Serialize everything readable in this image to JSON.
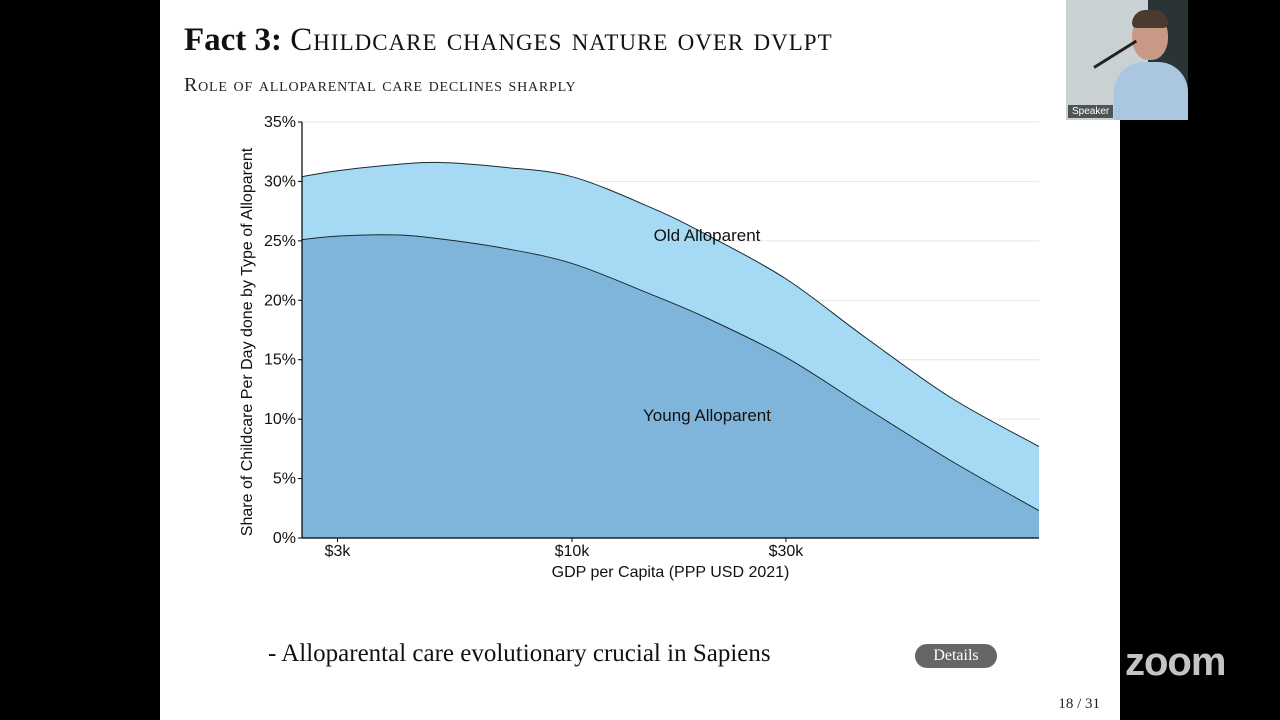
{
  "slide": {
    "title_prefix": "Fact 3:",
    "title_rest": "Childcare changes nature over dvlpt",
    "subtitle": "Role of alloparental care declines sharply",
    "bullet": "- Alloparental care evolutionary crucial in Sapiens",
    "details_label": "Details",
    "page_number": "18 / 31"
  },
  "speaker": {
    "label": "Speaker"
  },
  "zoom_watermark": "zoom",
  "colors": {
    "young": "#7fb5da",
    "old": "#a6daf4",
    "details_bg": "#666666"
  },
  "chart_data": {
    "type": "area",
    "stacked": true,
    "x": [
      2500,
      3000,
      4000,
      5000,
      7000,
      10000,
      15000,
      20000,
      30000,
      45000,
      70000,
      110000
    ],
    "x_ticks": [
      "$3k",
      "$10k",
      "$30k"
    ],
    "x_tick_values": [
      3000,
      10000,
      30000
    ],
    "x_scale": "log",
    "xlim": [
      2500,
      110000
    ],
    "xlabel": "GDP per Capita (PPP USD 2021)",
    "ylabel": "Share of Childcare Per Day done by Type of Alloparent",
    "y_ticks": [
      "0%",
      "5%",
      "10%",
      "15%",
      "20%",
      "25%",
      "30%",
      "35%"
    ],
    "ylim": [
      0,
      35
    ],
    "grid": true,
    "series": [
      {
        "name": "Young Alloparent",
        "values": [
          25.1,
          25.4,
          25.5,
          25.2,
          24.4,
          23.1,
          20.5,
          18.5,
          15.2,
          11.0,
          6.5,
          2.3
        ]
      },
      {
        "name": "Old Alloparent",
        "values": [
          5.3,
          5.5,
          5.9,
          6.4,
          6.8,
          7.3,
          7.3,
          7.0,
          6.6,
          5.9,
          5.3,
          5.4
        ]
      }
    ]
  }
}
